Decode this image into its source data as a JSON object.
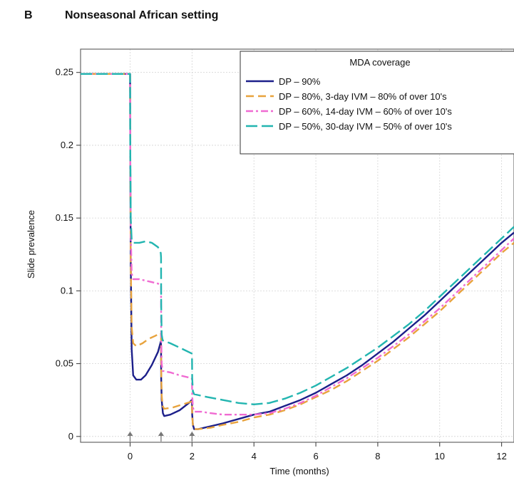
{
  "panel_letter": "B",
  "panel_title": "Nonseasonal African setting",
  "chart_data": {
    "type": "line",
    "title": "Nonseasonal African setting",
    "xlabel": "Time (months)",
    "ylabel": "Slide prevalence",
    "xlim": [
      -1.6,
      12.4
    ],
    "ylim": [
      -0.004,
      0.266
    ],
    "xticks": [
      0,
      2,
      4,
      6,
      8,
      10,
      12
    ],
    "yticks": [
      0,
      0.05,
      0.1,
      0.15,
      0.2,
      0.25
    ],
    "ytick_labels": [
      "0",
      "0.05",
      "0.1",
      "0.15",
      "0.2",
      "0.25"
    ],
    "grid": true,
    "legend_title": "MDA coverage",
    "legend_position": "top-right",
    "mda_rounds_months": [
      0,
      1,
      2
    ],
    "series": [
      {
        "name": "DP – 90%",
        "color": "#1c1f8a",
        "dash": "solid",
        "points": [
          [
            -1.6,
            0.249
          ],
          [
            0,
            0.249
          ],
          [
            0.005,
            0.2
          ],
          [
            0.02,
            0.12
          ],
          [
            0.05,
            0.06
          ],
          [
            0.1,
            0.042
          ],
          [
            0.2,
            0.039
          ],
          [
            0.35,
            0.039
          ],
          [
            0.5,
            0.042
          ],
          [
            0.7,
            0.049
          ],
          [
            0.9,
            0.058
          ],
          [
            0.99,
            0.065
          ],
          [
            1.0,
            0.063
          ],
          [
            1.005,
            0.04
          ],
          [
            1.02,
            0.025
          ],
          [
            1.06,
            0.016
          ],
          [
            1.1,
            0.014
          ],
          [
            1.3,
            0.015
          ],
          [
            1.6,
            0.018
          ],
          [
            1.9,
            0.023
          ],
          [
            1.99,
            0.025
          ],
          [
            2.0,
            0.025
          ],
          [
            2.005,
            0.015
          ],
          [
            2.03,
            0.008
          ],
          [
            2.07,
            0.005
          ],
          [
            2.2,
            0.005
          ],
          [
            2.6,
            0.007
          ],
          [
            3.0,
            0.009
          ],
          [
            3.5,
            0.012
          ],
          [
            4.0,
            0.015
          ],
          [
            4.5,
            0.017
          ],
          [
            5.0,
            0.021
          ],
          [
            5.5,
            0.025
          ],
          [
            6.0,
            0.03
          ],
          [
            6.5,
            0.036
          ],
          [
            7.0,
            0.042
          ],
          [
            7.5,
            0.049
          ],
          [
            8.0,
            0.057
          ],
          [
            8.5,
            0.065
          ],
          [
            9.0,
            0.074
          ],
          [
            9.5,
            0.083
          ],
          [
            10.0,
            0.093
          ],
          [
            10.5,
            0.103
          ],
          [
            11.0,
            0.113
          ],
          [
            11.5,
            0.123
          ],
          [
            12.0,
            0.133
          ],
          [
            12.4,
            0.14
          ]
        ]
      },
      {
        "name": "DP – 80%,  3-day IVM – 80% of over 10's",
        "color": "#e8a33d",
        "dash": "long",
        "points": [
          [
            -1.6,
            0.249
          ],
          [
            0,
            0.249
          ],
          [
            0.005,
            0.2
          ],
          [
            0.02,
            0.12
          ],
          [
            0.05,
            0.075
          ],
          [
            0.1,
            0.064
          ],
          [
            0.2,
            0.062
          ],
          [
            0.4,
            0.064
          ],
          [
            0.6,
            0.067
          ],
          [
            0.8,
            0.069
          ],
          [
            0.99,
            0.071
          ],
          [
            1.0,
            0.07
          ],
          [
            1.005,
            0.045
          ],
          [
            1.02,
            0.028
          ],
          [
            1.05,
            0.021
          ],
          [
            1.1,
            0.019
          ],
          [
            1.4,
            0.02
          ],
          [
            1.7,
            0.022
          ],
          [
            1.99,
            0.024
          ],
          [
            2.0,
            0.024
          ],
          [
            2.005,
            0.014
          ],
          [
            2.03,
            0.008
          ],
          [
            2.07,
            0.005
          ],
          [
            2.2,
            0.005
          ],
          [
            2.6,
            0.006
          ],
          [
            3.0,
            0.008
          ],
          [
            3.5,
            0.01
          ],
          [
            4.0,
            0.013
          ],
          [
            4.5,
            0.015
          ],
          [
            5.0,
            0.018
          ],
          [
            5.5,
            0.022
          ],
          [
            6.0,
            0.027
          ],
          [
            6.5,
            0.032
          ],
          [
            7.0,
            0.038
          ],
          [
            7.5,
            0.045
          ],
          [
            8.0,
            0.052
          ],
          [
            8.5,
            0.06
          ],
          [
            9.0,
            0.068
          ],
          [
            9.5,
            0.077
          ],
          [
            10.0,
            0.086
          ],
          [
            10.5,
            0.096
          ],
          [
            11.0,
            0.106
          ],
          [
            11.5,
            0.116
          ],
          [
            12.0,
            0.126
          ],
          [
            12.4,
            0.133
          ]
        ]
      },
      {
        "name": "DP – 60%, 14-day IVM – 60% of over 10's",
        "color": "#f06bd2",
        "dash": "dashdot",
        "points": [
          [
            -1.6,
            0.249
          ],
          [
            0,
            0.249
          ],
          [
            0.005,
            0.2
          ],
          [
            0.02,
            0.14
          ],
          [
            0.05,
            0.112
          ],
          [
            0.1,
            0.108
          ],
          [
            0.3,
            0.108
          ],
          [
            0.5,
            0.107
          ],
          [
            0.7,
            0.106
          ],
          [
            0.9,
            0.105
          ],
          [
            0.99,
            0.104
          ],
          [
            1.0,
            0.103
          ],
          [
            1.005,
            0.07
          ],
          [
            1.02,
            0.05
          ],
          [
            1.05,
            0.045
          ],
          [
            1.3,
            0.044
          ],
          [
            1.6,
            0.042
          ],
          [
            1.99,
            0.04
          ],
          [
            2.0,
            0.039
          ],
          [
            2.005,
            0.028
          ],
          [
            2.03,
            0.02
          ],
          [
            2.07,
            0.017
          ],
          [
            2.3,
            0.017
          ],
          [
            2.6,
            0.016
          ],
          [
            3.0,
            0.015
          ],
          [
            3.5,
            0.015
          ],
          [
            4.0,
            0.015
          ],
          [
            4.5,
            0.016
          ],
          [
            5.0,
            0.019
          ],
          [
            5.5,
            0.023
          ],
          [
            6.0,
            0.028
          ],
          [
            6.5,
            0.034
          ],
          [
            7.0,
            0.04
          ],
          [
            7.5,
            0.047
          ],
          [
            8.0,
            0.054
          ],
          [
            8.5,
            0.062
          ],
          [
            9.0,
            0.07
          ],
          [
            9.5,
            0.079
          ],
          [
            10.0,
            0.088
          ],
          [
            10.5,
            0.098
          ],
          [
            11.0,
            0.108
          ],
          [
            11.5,
            0.118
          ],
          [
            12.0,
            0.128
          ],
          [
            12.4,
            0.136
          ]
        ]
      },
      {
        "name": "DP – 50%, 30-day IVM – 50% of over 10's",
        "color": "#22b5b0",
        "dash": "dash",
        "points": [
          [
            -1.6,
            0.249
          ],
          [
            0,
            0.249
          ],
          [
            0.005,
            0.2
          ],
          [
            0.02,
            0.15
          ],
          [
            0.05,
            0.135
          ],
          [
            0.1,
            0.133
          ],
          [
            0.3,
            0.133
          ],
          [
            0.5,
            0.134
          ],
          [
            0.7,
            0.133
          ],
          [
            0.9,
            0.13
          ],
          [
            0.99,
            0.126
          ],
          [
            1.0,
            0.123
          ],
          [
            1.005,
            0.09
          ],
          [
            1.02,
            0.07
          ],
          [
            1.05,
            0.066
          ],
          [
            1.3,
            0.064
          ],
          [
            1.6,
            0.061
          ],
          [
            1.99,
            0.057
          ],
          [
            2.0,
            0.056
          ],
          [
            2.005,
            0.04
          ],
          [
            2.03,
            0.031
          ],
          [
            2.07,
            0.029
          ],
          [
            2.5,
            0.027
          ],
          [
            3.0,
            0.025
          ],
          [
            3.5,
            0.023
          ],
          [
            4.0,
            0.022
          ],
          [
            4.5,
            0.023
          ],
          [
            5.0,
            0.026
          ],
          [
            5.5,
            0.03
          ],
          [
            6.0,
            0.035
          ],
          [
            6.5,
            0.041
          ],
          [
            7.0,
            0.047
          ],
          [
            7.5,
            0.054
          ],
          [
            8.0,
            0.061
          ],
          [
            8.5,
            0.069
          ],
          [
            9.0,
            0.077
          ],
          [
            9.5,
            0.086
          ],
          [
            10.0,
            0.096
          ],
          [
            10.5,
            0.106
          ],
          [
            11.0,
            0.116
          ],
          [
            11.5,
            0.126
          ],
          [
            12.0,
            0.136
          ],
          [
            12.4,
            0.144
          ]
        ]
      }
    ]
  }
}
